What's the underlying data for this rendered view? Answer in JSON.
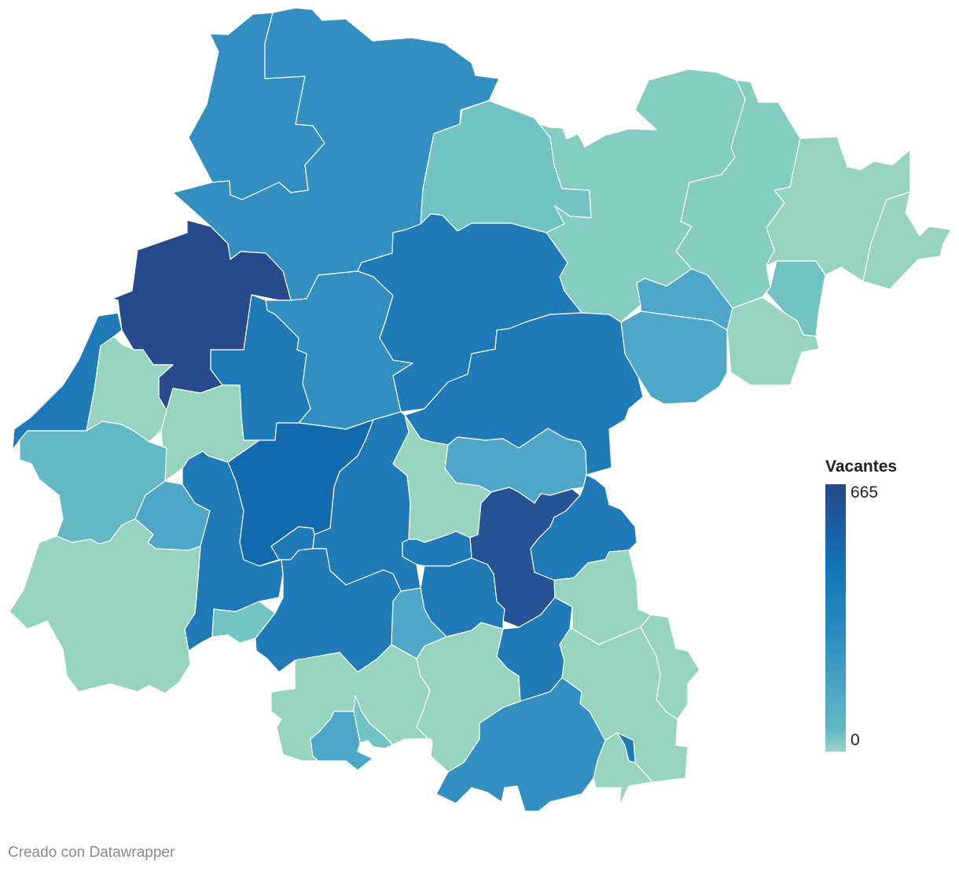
{
  "legend": {
    "title": "Vacantes",
    "max_label": "665",
    "min_label": "0",
    "gradient": [
      "#97d4c0",
      "#64b8c6",
      "#2a8bbf",
      "#1273b5",
      "#26488a"
    ]
  },
  "credit": "Creado con Datawrapper",
  "palette": {
    "lightest": "#97d4c0",
    "light": "#86cdc1",
    "teal": "#72c3c4",
    "teal_blue": "#64b8c6",
    "blue_light": "#4ea7c9",
    "blue_mid": "#338ec2",
    "blue": "#1f7ab7",
    "blue_strong": "#1369ae",
    "darkest": "#274a8c",
    "dark": "#245496"
  }
}
